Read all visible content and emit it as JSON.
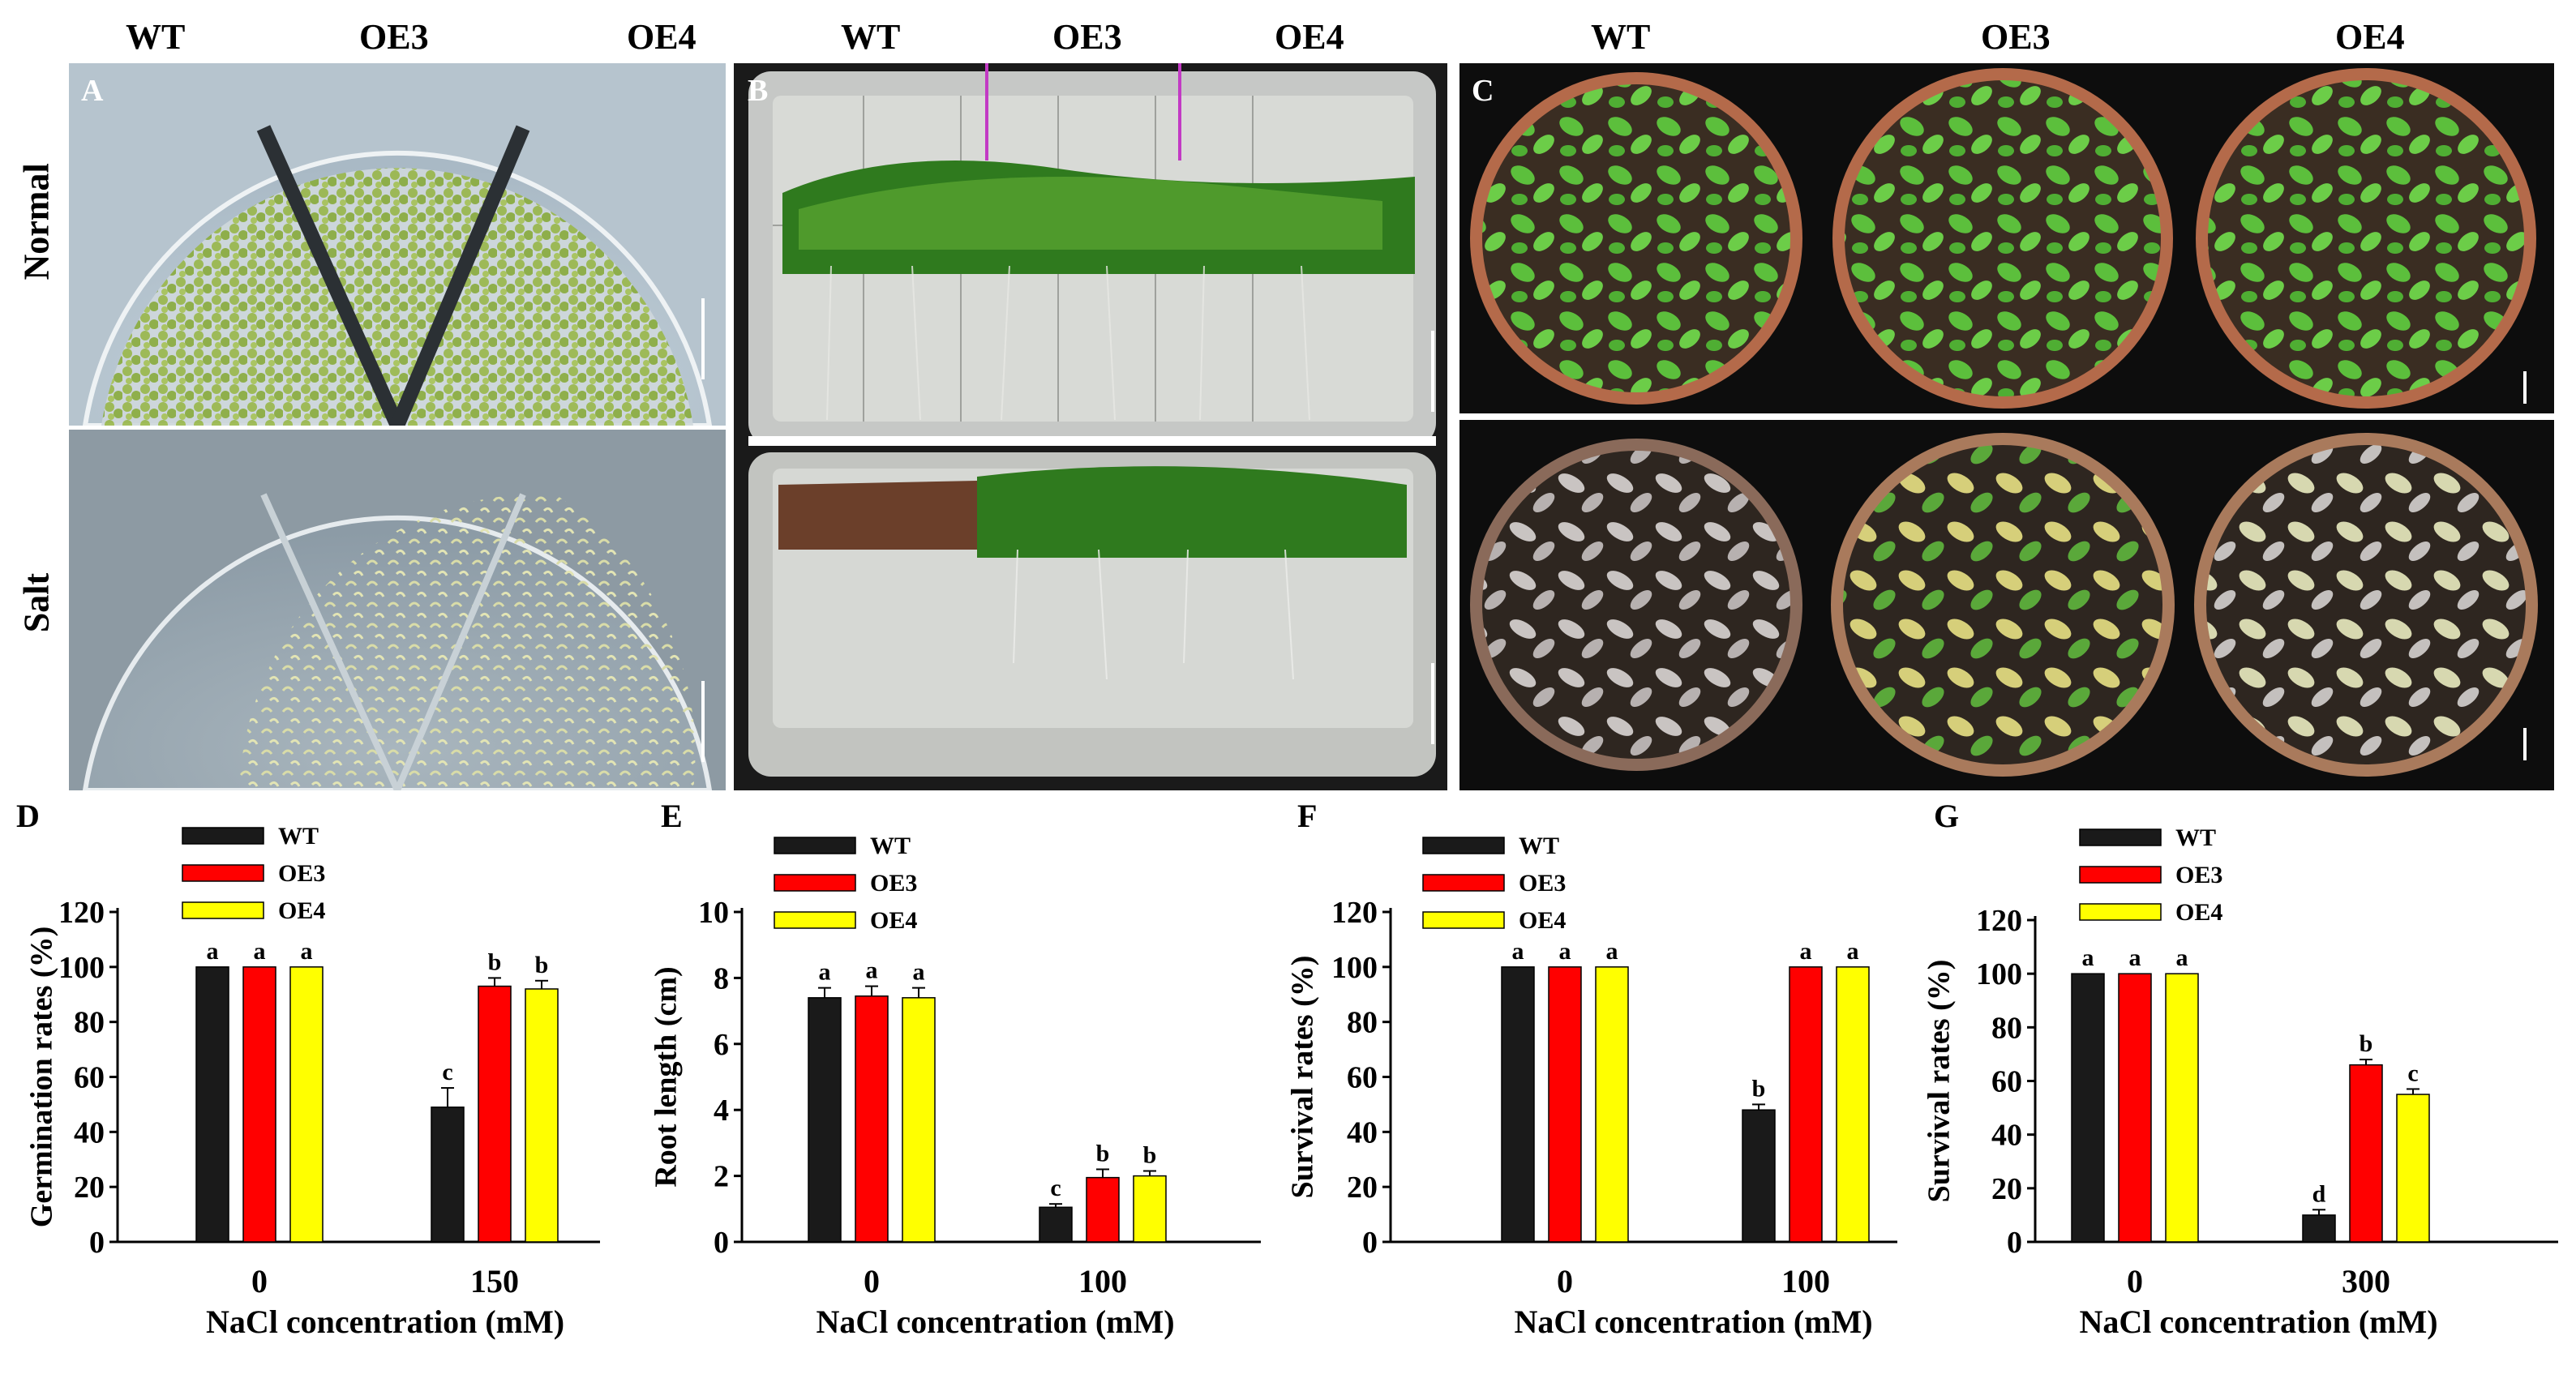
{
  "photos": {
    "genotype_headers": [
      "WT",
      "OE3",
      "OE4"
    ],
    "condition_labels": [
      "Normal",
      "Salt"
    ],
    "panels": [
      {
        "letter": "A"
      },
      {
        "letter": "B"
      },
      {
        "letter": "C"
      }
    ]
  },
  "colors": {
    "WT": "#1a1a1a",
    "OE3": "#ff0000",
    "OE4": "#ffff00"
  },
  "chart_data": [
    {
      "panel": "D",
      "type": "bar",
      "categories": [
        "0",
        "150"
      ],
      "xlabel": "NaCl concentration (mM)",
      "ylabel": "Germination rates (%)",
      "ylim": [
        0,
        120
      ],
      "yticks": [
        0,
        20,
        40,
        60,
        80,
        100,
        120
      ],
      "legend": [
        "WT",
        "OE3",
        "OE4"
      ],
      "series": [
        {
          "name": "WT",
          "values": [
            100,
            49
          ],
          "errors": [
            0,
            7
          ],
          "letters": [
            "a",
            "c"
          ]
        },
        {
          "name": "OE3",
          "values": [
            100,
            93
          ],
          "errors": [
            0,
            3
          ],
          "letters": [
            "a",
            "b"
          ]
        },
        {
          "name": "OE4",
          "values": [
            100,
            92
          ],
          "errors": [
            0,
            3
          ],
          "letters": [
            "a",
            "b"
          ]
        }
      ]
    },
    {
      "panel": "E",
      "type": "bar",
      "categories": [
        "0",
        "100"
      ],
      "xlabel": "NaCl concentration (mM)",
      "ylabel": "Root length (cm)",
      "ylim": [
        0,
        10
      ],
      "yticks": [
        0,
        2,
        4,
        6,
        8,
        10
      ],
      "legend": [
        "WT",
        "OE3",
        "OE4"
      ],
      "series": [
        {
          "name": "WT",
          "values": [
            7.4,
            1.05
          ],
          "errors": [
            0.3,
            0.1
          ],
          "letters": [
            "a",
            "c"
          ]
        },
        {
          "name": "OE3",
          "values": [
            7.45,
            1.95
          ],
          "errors": [
            0.3,
            0.25
          ],
          "letters": [
            "a",
            "b"
          ]
        },
        {
          "name": "OE4",
          "values": [
            7.4,
            2.0
          ],
          "errors": [
            0.3,
            0.15
          ],
          "letters": [
            "a",
            "b"
          ]
        }
      ]
    },
    {
      "panel": "F",
      "type": "bar",
      "categories": [
        "0",
        "100"
      ],
      "xlabel": "NaCl concentration (mM)",
      "ylabel": "Survival rates (%)",
      "ylim": [
        0,
        120
      ],
      "yticks": [
        0,
        20,
        40,
        60,
        80,
        100,
        120
      ],
      "legend": [
        "WT",
        "OE3",
        "OE4"
      ],
      "series": [
        {
          "name": "WT",
          "values": [
            100,
            48
          ],
          "errors": [
            0,
            2
          ],
          "letters": [
            "a",
            "b"
          ]
        },
        {
          "name": "OE3",
          "values": [
            100,
            100
          ],
          "errors": [
            0,
            0
          ],
          "letters": [
            "a",
            "a"
          ]
        },
        {
          "name": "OE4",
          "values": [
            100,
            100
          ],
          "errors": [
            0,
            0
          ],
          "letters": [
            "a",
            "a"
          ]
        }
      ]
    },
    {
      "panel": "G",
      "type": "bar",
      "categories": [
        "0",
        "300"
      ],
      "xlabel": "NaCl concentration (mM)",
      "ylabel": "Survival rates (%)",
      "ylim": [
        0,
        120
      ],
      "yticks": [
        0,
        20,
        40,
        60,
        80,
        100,
        120
      ],
      "legend": [
        "WT",
        "OE3",
        "OE4"
      ],
      "series": [
        {
          "name": "WT",
          "values": [
            100,
            10
          ],
          "errors": [
            0,
            2
          ],
          "letters": [
            "a",
            "d"
          ]
        },
        {
          "name": "OE3",
          "values": [
            100,
            66
          ],
          "errors": [
            0,
            2
          ],
          "letters": [
            "a",
            "b"
          ]
        },
        {
          "name": "OE4",
          "values": [
            100,
            55
          ],
          "errors": [
            0,
            2
          ],
          "letters": [
            "a",
            "c"
          ]
        }
      ]
    }
  ]
}
